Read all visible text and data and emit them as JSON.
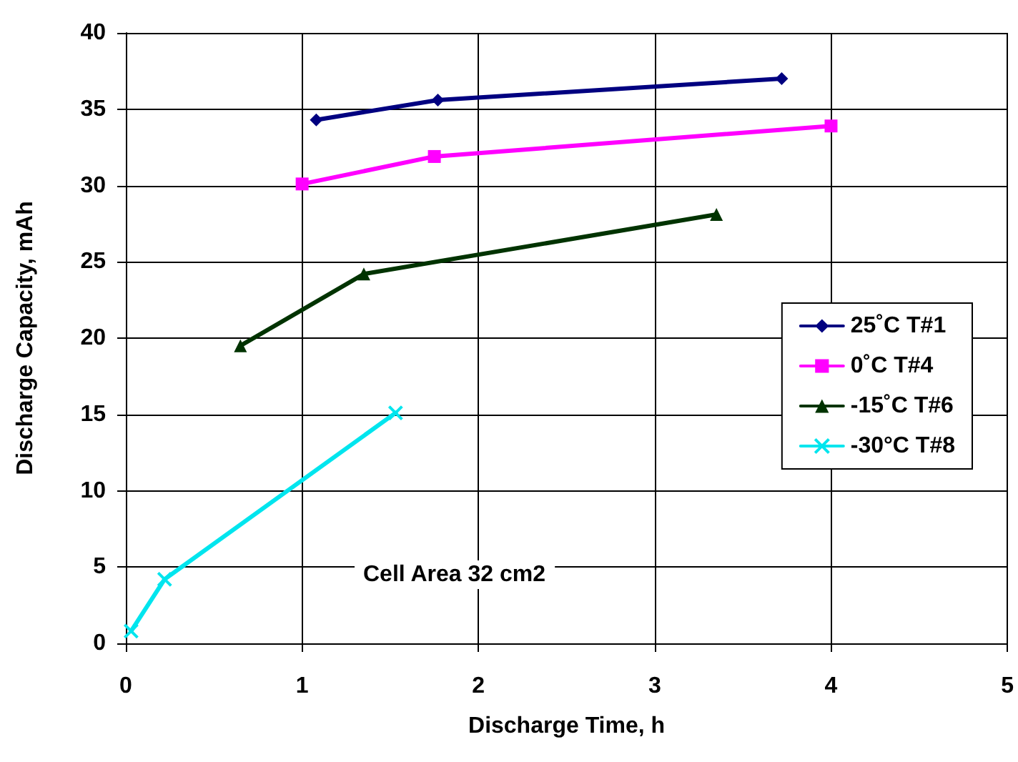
{
  "chart_data": {
    "type": "line",
    "xlabel": "Discharge Time, h",
    "ylabel": "Discharge Capacity, mAh",
    "xlim": [
      0,
      5
    ],
    "xticks": [
      0,
      1,
      2,
      3,
      4,
      5
    ],
    "ylim": [
      0,
      40
    ],
    "yticks": [
      0,
      5,
      10,
      15,
      20,
      25,
      30,
      35,
      40
    ],
    "grid": true,
    "legend": "right",
    "annotations": [
      "Cell Area 32 cm2"
    ],
    "series": [
      {
        "name": "25˚C T#1",
        "color": "#000080",
        "marker": "diamond",
        "x": [
          1.08,
          1.77,
          3.72
        ],
        "values": [
          34.3,
          35.6,
          37.0
        ]
      },
      {
        "name": "0˚C T#4",
        "color": "#ff00ff",
        "marker": "square",
        "x": [
          1.0,
          1.75,
          4.0
        ],
        "values": [
          30.1,
          31.9,
          33.9
        ]
      },
      {
        "name": "-15˚C T#6",
        "color": "#003300",
        "marker": "triangle",
        "x": [
          0.65,
          1.35,
          3.35
        ],
        "values": [
          19.5,
          24.2,
          28.1
        ]
      },
      {
        "name": "-30°C T#8",
        "color": "#00e5ee",
        "marker": "cross",
        "x": [
          0.03,
          0.22,
          1.53
        ],
        "values": [
          0.8,
          4.2,
          15.1
        ]
      }
    ]
  }
}
